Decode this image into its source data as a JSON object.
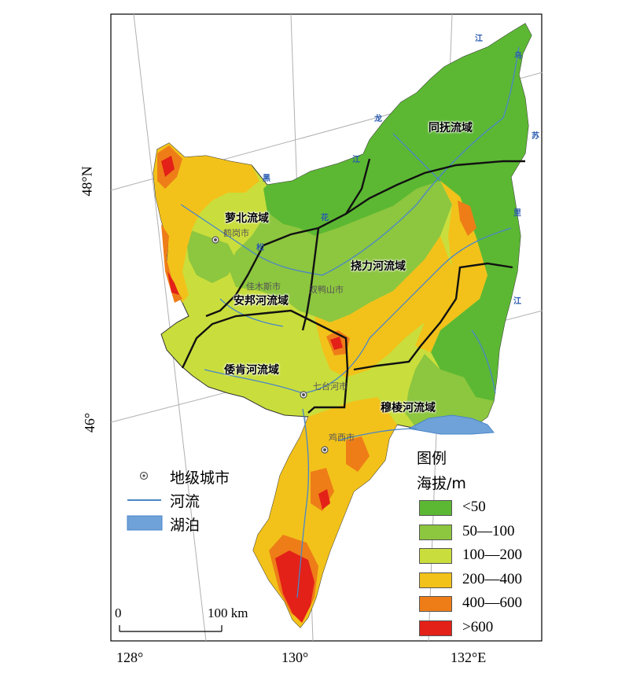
{
  "axes": {
    "x_ticks": [
      "128°",
      "130°",
      "132°E"
    ],
    "y_ticks": [
      "48°N",
      "46°"
    ]
  },
  "basins": [
    "同抚流域",
    "萝北流域",
    "挠力河流域",
    "安邦河流域",
    "倭肯河流域",
    "穆棱河流域"
  ],
  "cities": [
    "鹤岗市",
    "佳木斯市",
    "双鸭山市",
    "七台河市",
    "鸡西市"
  ],
  "river_names": [
    "江",
    "乌",
    "苏",
    "里",
    "江",
    "黑",
    "龙",
    "江",
    "松",
    "花"
  ],
  "legend_left": {
    "city": "地级城市",
    "river": "河流",
    "lake": "湖泊"
  },
  "legend_right": {
    "title": "图例",
    "subtitle": "海拔/m",
    "classes": [
      {
        "label": "<50",
        "color": "#5cb833"
      },
      {
        "label": "50—100",
        "color": "#8dc63f"
      },
      {
        "label": "100—200",
        "color": "#c9de3c"
      },
      {
        "label": "200—400",
        "color": "#f2c21a"
      },
      {
        "label": "400—600",
        "color": "#ee7d18"
      },
      {
        "label": ">600",
        "color": "#e32118"
      }
    ]
  },
  "scale_bar": {
    "zero": "0",
    "end": "100 km"
  },
  "colors": {
    "river": "#4a86c8",
    "lake": "#6fa2d8",
    "boundary": "#111111",
    "graticule": "#b0b0b0"
  }
}
